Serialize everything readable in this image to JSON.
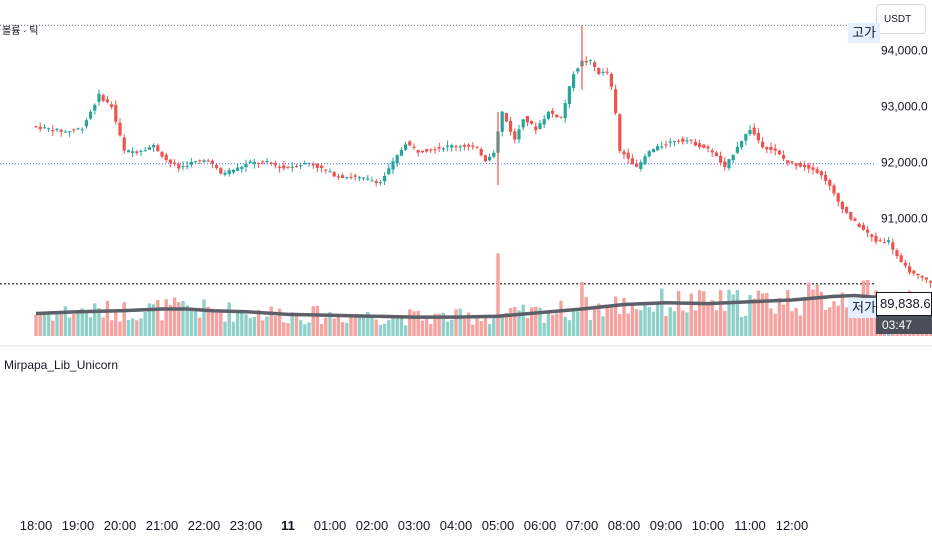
{
  "header": {
    "indicator_label": "볼륨 · 틱",
    "currency": "USDT"
  },
  "lower_pane": {
    "label": "Mirpapa_Lib_Unicorn"
  },
  "tags": {
    "high": "고가",
    "low": "저가",
    "low_price": "89,838.6",
    "countdown": "03:47"
  },
  "colors": {
    "up": "#26a69a",
    "down": "#ef5350",
    "vol_up": "#8fd0c9",
    "vol_down": "#f6a2a0",
    "volume_ma": "#5d6068",
    "guide_line": "#2962ff",
    "marker": "#f5a623"
  },
  "chart_data": {
    "type": "candlestick",
    "y_axis": {
      "ticks": [
        94000,
        93000,
        92000,
        91000
      ],
      "tick_labels": [
        "94,000.0",
        "93,000.0",
        "92,000.0",
        "91,000.0"
      ],
      "range": [
        89550,
        94650
      ]
    },
    "x_axis": {
      "tick_labels": [
        "18:00",
        "19:00",
        "20:00",
        "21:00",
        "22:00",
        "23:00",
        "11",
        "01:00",
        "02:00",
        "03:00",
        "04:00",
        "05:00",
        "06:00",
        "07:00",
        "08:00",
        "09:00",
        "10:00",
        "11:00",
        "12:00"
      ],
      "bold_label": "11"
    },
    "reference_lines": {
      "high": 94450,
      "mid": 91980,
      "low": 89838.6
    },
    "price_path": [
      [
        0,
        92650
      ],
      [
        0.4,
        92600
      ],
      [
        0.8,
        92550
      ],
      [
        1.2,
        92620
      ],
      [
        1.6,
        93200
      ],
      [
        1.9,
        93000
      ],
      [
        2.2,
        92200
      ],
      [
        2.5,
        92200
      ],
      [
        2.9,
        92300
      ],
      [
        3.2,
        92050
      ],
      [
        3.5,
        91900
      ],
      [
        3.8,
        92000
      ],
      [
        4.2,
        92050
      ],
      [
        4.5,
        91800
      ],
      [
        4.9,
        91900
      ],
      [
        5.2,
        92000
      ],
      [
        5.6,
        92000
      ],
      [
        6.0,
        91900
      ],
      [
        6.3,
        91950
      ],
      [
        6.6,
        92000
      ],
      [
        7.0,
        91850
      ],
      [
        7.3,
        91750
      ],
      [
        7.6,
        91750
      ],
      [
        8.0,
        91700
      ],
      [
        8.3,
        91650
      ],
      [
        8.6,
        92000
      ],
      [
        8.9,
        92350
      ],
      [
        9.2,
        92200
      ],
      [
        9.6,
        92250
      ],
      [
        10.0,
        92300
      ],
      [
        10.3,
        92300
      ],
      [
        10.6,
        92250
      ],
      [
        10.8,
        92050
      ],
      [
        11.0,
        92200
      ],
      [
        11.2,
        92900
      ],
      [
        11.5,
        92400
      ],
      [
        11.7,
        92800
      ],
      [
        12.0,
        92600
      ],
      [
        12.3,
        92900
      ],
      [
        12.6,
        92800
      ],
      [
        12.9,
        93600
      ],
      [
        13.1,
        93800
      ],
      [
        13.3,
        93800
      ],
      [
        13.5,
        93600
      ],
      [
        13.7,
        93600
      ],
      [
        13.85,
        93200
      ],
      [
        14.0,
        92200
      ],
      [
        14.2,
        92100
      ],
      [
        14.4,
        91900
      ],
      [
        14.7,
        92200
      ],
      [
        15.0,
        92300
      ],
      [
        15.3,
        92400
      ],
      [
        15.6,
        92400
      ],
      [
        15.9,
        92300
      ],
      [
        16.2,
        92200
      ],
      [
        16.5,
        91900
      ],
      [
        16.8,
        92300
      ],
      [
        17.1,
        92600
      ],
      [
        17.4,
        92300
      ],
      [
        17.7,
        92200
      ],
      [
        18.0,
        92000
      ],
      [
        18.3,
        91950
      ],
      [
        18.6,
        91900
      ],
      [
        18.9,
        91700
      ],
      [
        19.2,
        91300
      ],
      [
        19.5,
        91000
      ],
      [
        19.8,
        90800
      ],
      [
        20.1,
        90600
      ],
      [
        20.4,
        90600
      ],
      [
        20.7,
        90200
      ],
      [
        21.0,
        90000
      ],
      [
        21.3,
        89900
      ],
      [
        21.6,
        89838.6
      ]
    ],
    "spikes": [
      {
        "x": 11.0,
        "low": 91600,
        "high": 92900
      },
      {
        "x": 13.0,
        "low": 93300,
        "high": 94450
      }
    ],
    "volume": {
      "range": [
        0,
        100
      ],
      "spike_bars": [
        {
          "x": 11.0,
          "value": 92
        },
        {
          "x": 13.0,
          "value": 60
        }
      ],
      "ma_path": [
        [
          0,
          25
        ],
        [
          1.0,
          27
        ],
        [
          2.0,
          28
        ],
        [
          3.0,
          30
        ],
        [
          3.6,
          30
        ],
        [
          4.2,
          28
        ],
        [
          5.0,
          27
        ],
        [
          6.0,
          24
        ],
        [
          7.0,
          23
        ],
        [
          8.0,
          22
        ],
        [
          9.0,
          21
        ],
        [
          10.0,
          21
        ],
        [
          11.0,
          22
        ],
        [
          12.0,
          26
        ],
        [
          13.0,
          30
        ],
        [
          14.0,
          35
        ],
        [
          15.0,
          37
        ],
        [
          16.0,
          36
        ],
        [
          17.0,
          38
        ],
        [
          18.0,
          40
        ],
        [
          19.0,
          44
        ],
        [
          19.5,
          45
        ],
        [
          20.0,
          43
        ],
        [
          21.0,
          39
        ],
        [
          21.8,
          36
        ]
      ]
    }
  }
}
